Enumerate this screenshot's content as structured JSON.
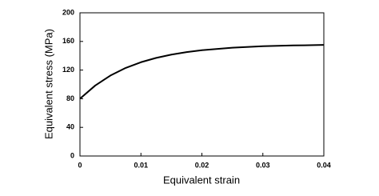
{
  "chart_data": {
    "type": "line",
    "x_label": "Equivalent strain",
    "y_label": "Equivalent stress (MPa)",
    "x": [
      0,
      0.0025,
      0.005,
      0.0075,
      0.01,
      0.0125,
      0.015,
      0.0175,
      0.02,
      0.025,
      0.03,
      0.035,
      0.04
    ],
    "series": [
      {
        "color": "#000000",
        "values": [
          80,
          98.4,
          112.4,
          123.0,
          131.0,
          137.0,
          141.6,
          145.1,
          147.8,
          151.3,
          153.3,
          154.4,
          155.1
        ]
      }
    ],
    "xlim": [
      0,
      0.04
    ],
    "xticks": [
      0,
      0.01,
      0.02,
      0.03,
      0.04
    ],
    "ylim": [
      0,
      200
    ],
    "yticks": [
      0,
      40,
      80,
      120,
      160,
      200
    ]
  }
}
